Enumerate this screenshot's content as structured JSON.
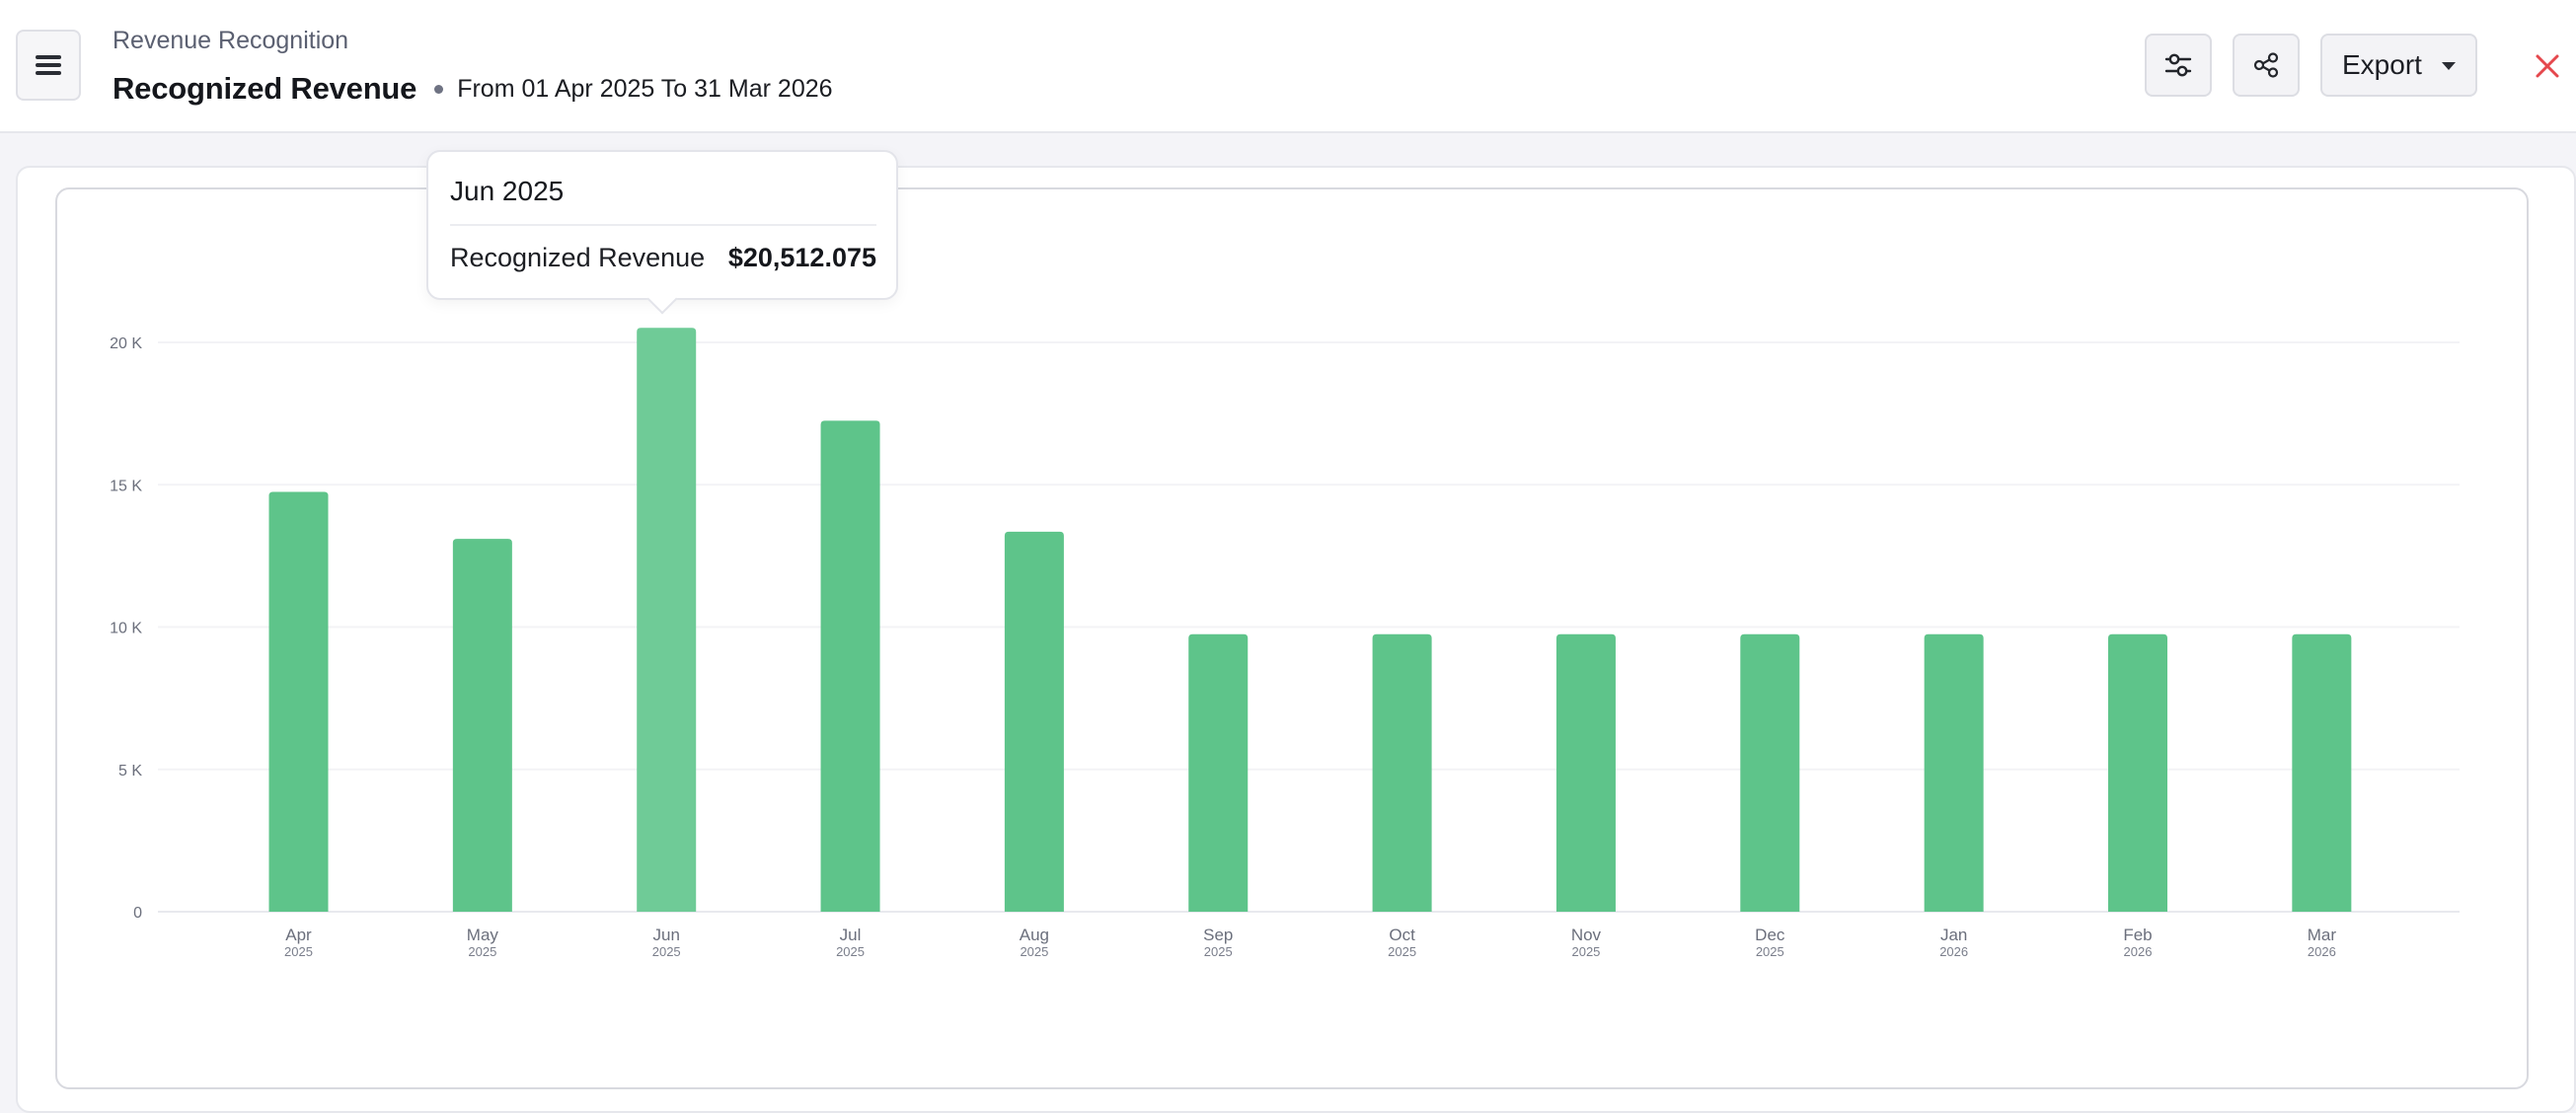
{
  "header": {
    "breadcrumb": "Revenue Recognition",
    "title": "Recognized Revenue",
    "date_range": "From 01 Apr 2025 To 31 Mar 2026",
    "export_label": "Export",
    "icons": [
      "menu-icon",
      "filter-sliders-icon",
      "share-icon",
      "chevron-down-icon",
      "close-icon"
    ]
  },
  "tooltip": {
    "title": "Jun 2025",
    "label": "Recognized Revenue",
    "value": "$20,512.075"
  },
  "colors": {
    "bar": "#5ec48a",
    "bar_hover": "#6fcb97",
    "close": "#e5484d"
  },
  "chart_data": {
    "type": "bar",
    "categories": [
      "Apr",
      "May",
      "Jun",
      "Jul",
      "Aug",
      "Sep",
      "Oct",
      "Nov",
      "Dec",
      "Jan",
      "Feb",
      "Mar"
    ],
    "years": [
      "2025",
      "2025",
      "2025",
      "2025",
      "2025",
      "2025",
      "2025",
      "2025",
      "2025",
      "2026",
      "2026",
      "2026"
    ],
    "values": [
      14750,
      13100,
      20512.075,
      17250,
      13350,
      9750,
      9750,
      9750,
      9750,
      9750,
      9750,
      9750
    ],
    "highlight_index": 2,
    "ylim": [
      0,
      20000
    ],
    "yticks": [
      0,
      5000,
      10000,
      15000,
      20000
    ],
    "ytick_labels": [
      "0",
      "5 K",
      "10 K",
      "15 K",
      "20 K"
    ],
    "grid": true,
    "legend": "none"
  }
}
